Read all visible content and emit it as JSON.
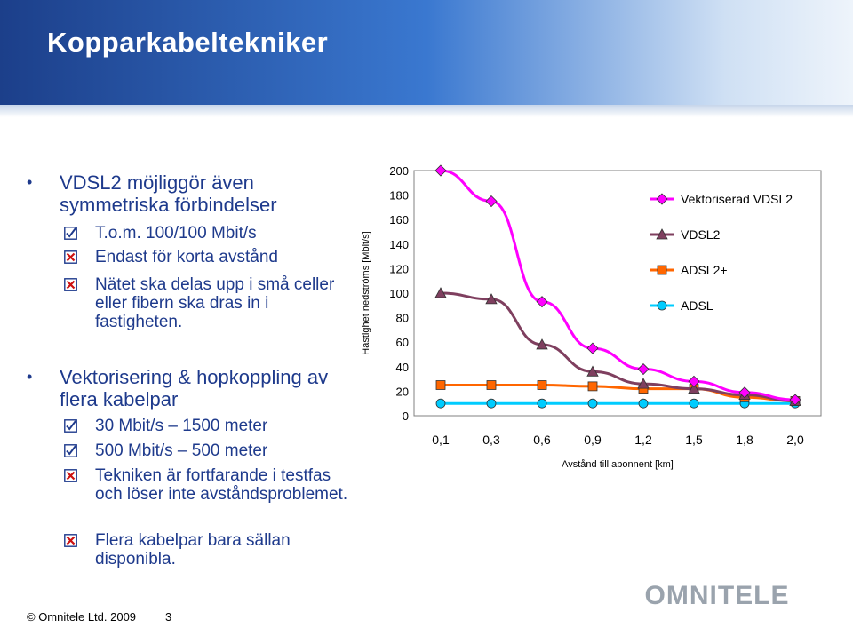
{
  "slide": {
    "title": "Kopparkabeltekniker",
    "bullets": [
      {
        "text": "VDSL2 möjliggör även symmetriska förbindelser",
        "items": [
          {
            "mark": "check",
            "text": "T.o.m. 100/100 Mbit/s"
          },
          {
            "mark": "cross",
            "text": "Endast för korta avstånd"
          },
          {
            "mark": "cross",
            "text": "Nätet ska delas upp i små celler eller fibern ska dras in i fastigheten."
          }
        ]
      },
      {
        "text": "Vektorisering & hopkoppling av flera kabelpar",
        "items": [
          {
            "mark": "check",
            "text": "30 Mbit/s – 1500 meter"
          },
          {
            "mark": "check",
            "text": "500 Mbit/s – 500 meter"
          },
          {
            "mark": "cross",
            "text": "Tekniken är fortfarande i testfas och löser inte avståndsproblemet."
          },
          {
            "mark": "cross",
            "text": "Flera kabelpar bara sällan disponibla."
          }
        ]
      }
    ],
    "footer": {
      "copyright": "© Omnitele Ltd. 2009",
      "page": "3"
    },
    "logo": "OMNITELE"
  },
  "colors": {
    "title_bg": "#2a5cb8",
    "text": "#1e3a8c",
    "check": "#1e3a8c",
    "cross": "#cc1111",
    "logo": "#9aa3ad"
  },
  "chart_data": {
    "type": "line",
    "title": "",
    "xlabel": "Avstånd till abonnent [km]",
    "ylabel": "Hastighet nedströms [Mbit/s]",
    "x": [
      "0,1",
      "0,3",
      "0,6",
      "0,9",
      "1,2",
      "1,5",
      "1,8",
      "2,0"
    ],
    "ylim": [
      0,
      200
    ],
    "yticks": [
      "0",
      "20",
      "40",
      "60",
      "80",
      "100",
      "120",
      "140",
      "160",
      "180",
      "200"
    ],
    "grid": false,
    "legend_position": "top-right",
    "series": [
      {
        "name": "Vektoriserad VDSL2",
        "color": "#ff00ff",
        "marker": "diamond",
        "values": [
          200,
          175,
          93,
          55,
          38,
          28,
          19,
          13
        ]
      },
      {
        "name": "VDSL2",
        "color": "#7f3f5f",
        "marker": "triangle",
        "values": [
          100,
          95,
          58,
          36,
          26,
          22,
          17,
          12
        ]
      },
      {
        "name": "ADSL2+",
        "color": "#ff6600",
        "marker": "square",
        "values": [
          25,
          25,
          25,
          24,
          22,
          22,
          15,
          12
        ]
      },
      {
        "name": "ADSL",
        "color": "#00ccff",
        "marker": "circle",
        "values": [
          10,
          10,
          10,
          10,
          10,
          10,
          10,
          10
        ]
      }
    ]
  }
}
